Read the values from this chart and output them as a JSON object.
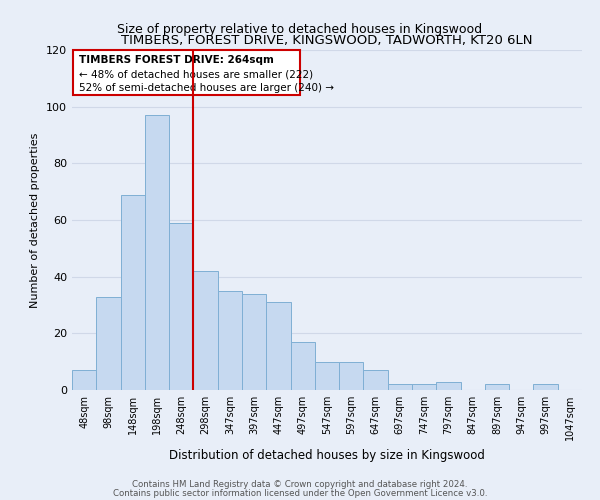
{
  "title": "TIMBERS, FOREST DRIVE, KINGSWOOD, TADWORTH, KT20 6LN",
  "subtitle": "Size of property relative to detached houses in Kingswood",
  "xlabel": "Distribution of detached houses by size in Kingswood",
  "ylabel": "Number of detached properties",
  "bar_labels": [
    "48sqm",
    "98sqm",
    "148sqm",
    "198sqm",
    "248sqm",
    "298sqm",
    "347sqm",
    "397sqm",
    "447sqm",
    "497sqm",
    "547sqm",
    "597sqm",
    "647sqm",
    "697sqm",
    "747sqm",
    "797sqm",
    "847sqm",
    "897sqm",
    "947sqm",
    "997sqm",
    "1047sqm"
  ],
  "bar_values": [
    7,
    33,
    69,
    97,
    59,
    42,
    35,
    34,
    31,
    17,
    10,
    10,
    7,
    2,
    2,
    3,
    0,
    2,
    0,
    2,
    0
  ],
  "bar_color": "#c6d9f0",
  "bar_edge_color": "#7fafd4",
  "ylim": [
    0,
    120
  ],
  "yticks": [
    0,
    20,
    40,
    60,
    80,
    100,
    120
  ],
  "vline_x": 4.5,
  "vline_color": "#cc0000",
  "annotation_title": "TIMBERS FOREST DRIVE: 264sqm",
  "annotation_line1": "← 48% of detached houses are smaller (222)",
  "annotation_line2": "52% of semi-detached houses are larger (240) →",
  "annotation_box_color": "#ffffff",
  "annotation_box_edge": "#cc0000",
  "footer1": "Contains HM Land Registry data © Crown copyright and database right 2024.",
  "footer2": "Contains public sector information licensed under the Open Government Licence v3.0.",
  "bg_color": "#e8eef8",
  "grid_color": "#d0d8e8",
  "title_fontsize": 9.5,
  "subtitle_fontsize": 9
}
